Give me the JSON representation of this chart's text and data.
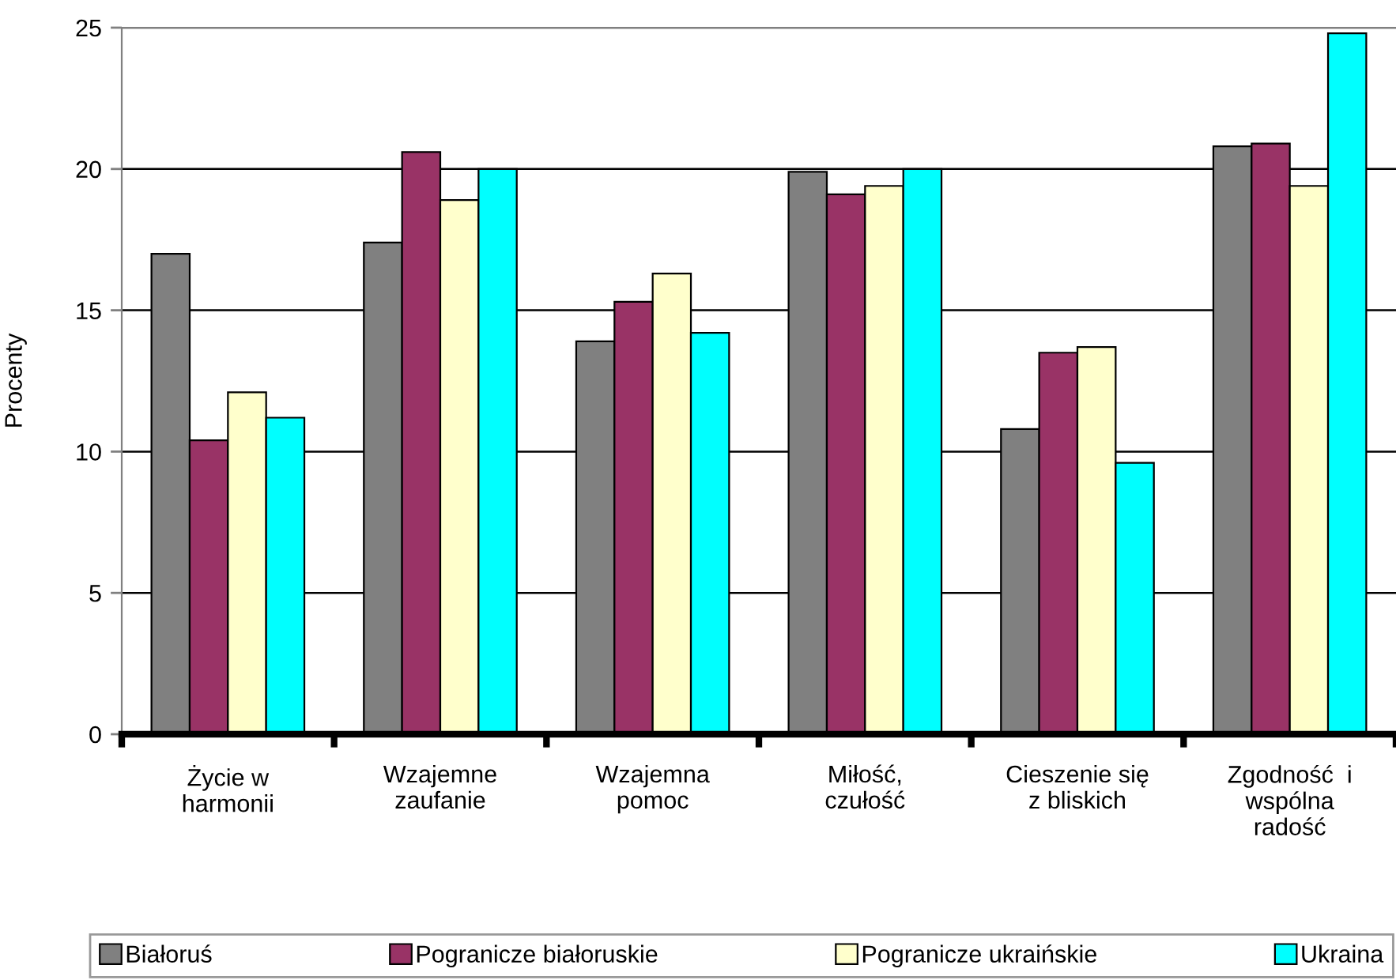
{
  "chart_data": {
    "type": "bar",
    "ylabel": "Procenty",
    "categories": [
      "Życie w\nharmonii",
      "Wzajemne\nzaufanie",
      "Wzajemna\npomoc",
      "Miłość,\nczułość",
      "Cieszenie się\nz bliskich",
      "Zgodność  i\nwspólna\nradość"
    ],
    "series": [
      {
        "name": "Białoruś",
        "color": "#808080",
        "values": [
          17.0,
          17.4,
          13.9,
          19.9,
          10.8,
          20.8
        ]
      },
      {
        "name": "Pogranicze białoruskie",
        "color": "#993366",
        "values": [
          10.4,
          20.6,
          15.3,
          19.1,
          13.5,
          20.9
        ]
      },
      {
        "name": "Pogranicze ukraińskie",
        "color": "#ffffcc",
        "values": [
          12.1,
          18.9,
          16.3,
          19.4,
          13.7,
          19.4
        ]
      },
      {
        "name": "Ukraina",
        "color": "#00ffff",
        "values": [
          11.2,
          20.0,
          14.2,
          20.0,
          9.6,
          24.8
        ]
      }
    ],
    "ylim": [
      0,
      25
    ],
    "yticks": [
      0,
      5,
      10,
      15,
      20,
      25
    ],
    "grid": "y",
    "legend": "bottom"
  }
}
